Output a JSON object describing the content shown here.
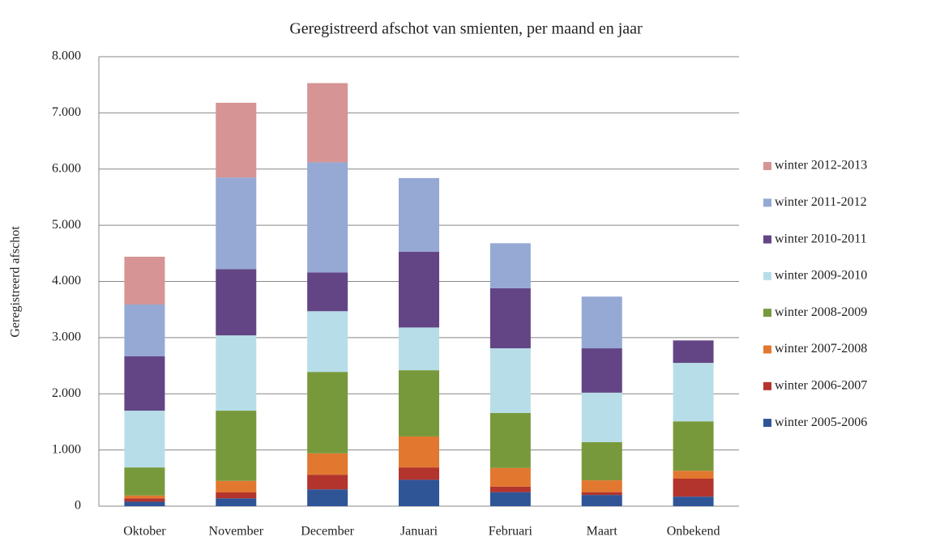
{
  "chart_data": {
    "type": "stacked_bar",
    "title": "Geregistreerd afschot van smienten, per maand en jaar",
    "y_label": "Geregistreerd afschot",
    "categories": [
      "Oktober",
      "November",
      "December",
      "Januari",
      "Februari",
      "Maart",
      "Onbekend"
    ],
    "series": [
      {
        "name": "winter 2005-2006",
        "color": "#2f5597",
        "values": [
          80,
          140,
          300,
          470,
          250,
          200,
          170
        ]
      },
      {
        "name": "winter 2006-2007",
        "color": "#b3342c",
        "values": [
          60,
          105,
          260,
          220,
          100,
          50,
          320
        ]
      },
      {
        "name": "winter 2007-2008",
        "color": "#e2782f",
        "values": [
          50,
          205,
          380,
          550,
          330,
          210,
          140
        ]
      },
      {
        "name": "winter 2008-2009",
        "color": "#78993b",
        "values": [
          500,
          1250,
          1450,
          1180,
          980,
          680,
          880
        ]
      },
      {
        "name": "winter 2009-2010",
        "color": "#b7dee8",
        "values": [
          1010,
          1340,
          1080,
          760,
          1150,
          880,
          1040
        ]
      },
      {
        "name": "winter 2010-2011",
        "color": "#634585",
        "values": [
          970,
          1180,
          690,
          1350,
          1070,
          790,
          400
        ]
      },
      {
        "name": "winter 2011-2012",
        "color": "#95a9d4",
        "values": [
          920,
          1630,
          1960,
          1310,
          800,
          920,
          0
        ]
      },
      {
        "name": "winter 2012-2013",
        "color": "#d69494",
        "values": [
          850,
          1330,
          1410,
          0,
          0,
          0,
          0
        ]
      }
    ],
    "ylim": [
      0,
      8000
    ],
    "yticks": [
      0,
      {
        "value": 1000,
        "label": "1.000"
      },
      {
        "value": 2000,
        "label": "2.000"
      },
      {
        "value": 3000,
        "label": "3.000"
      },
      {
        "value": 4000,
        "label": "4.000"
      },
      {
        "value": 5000,
        "label": "5.000"
      },
      {
        "value": 6000,
        "label": "6.000"
      },
      {
        "value": 7000,
        "label": "7.000"
      },
      {
        "value": 8000,
        "label": "8.000"
      }
    ],
    "grid": true,
    "legend": "right"
  }
}
